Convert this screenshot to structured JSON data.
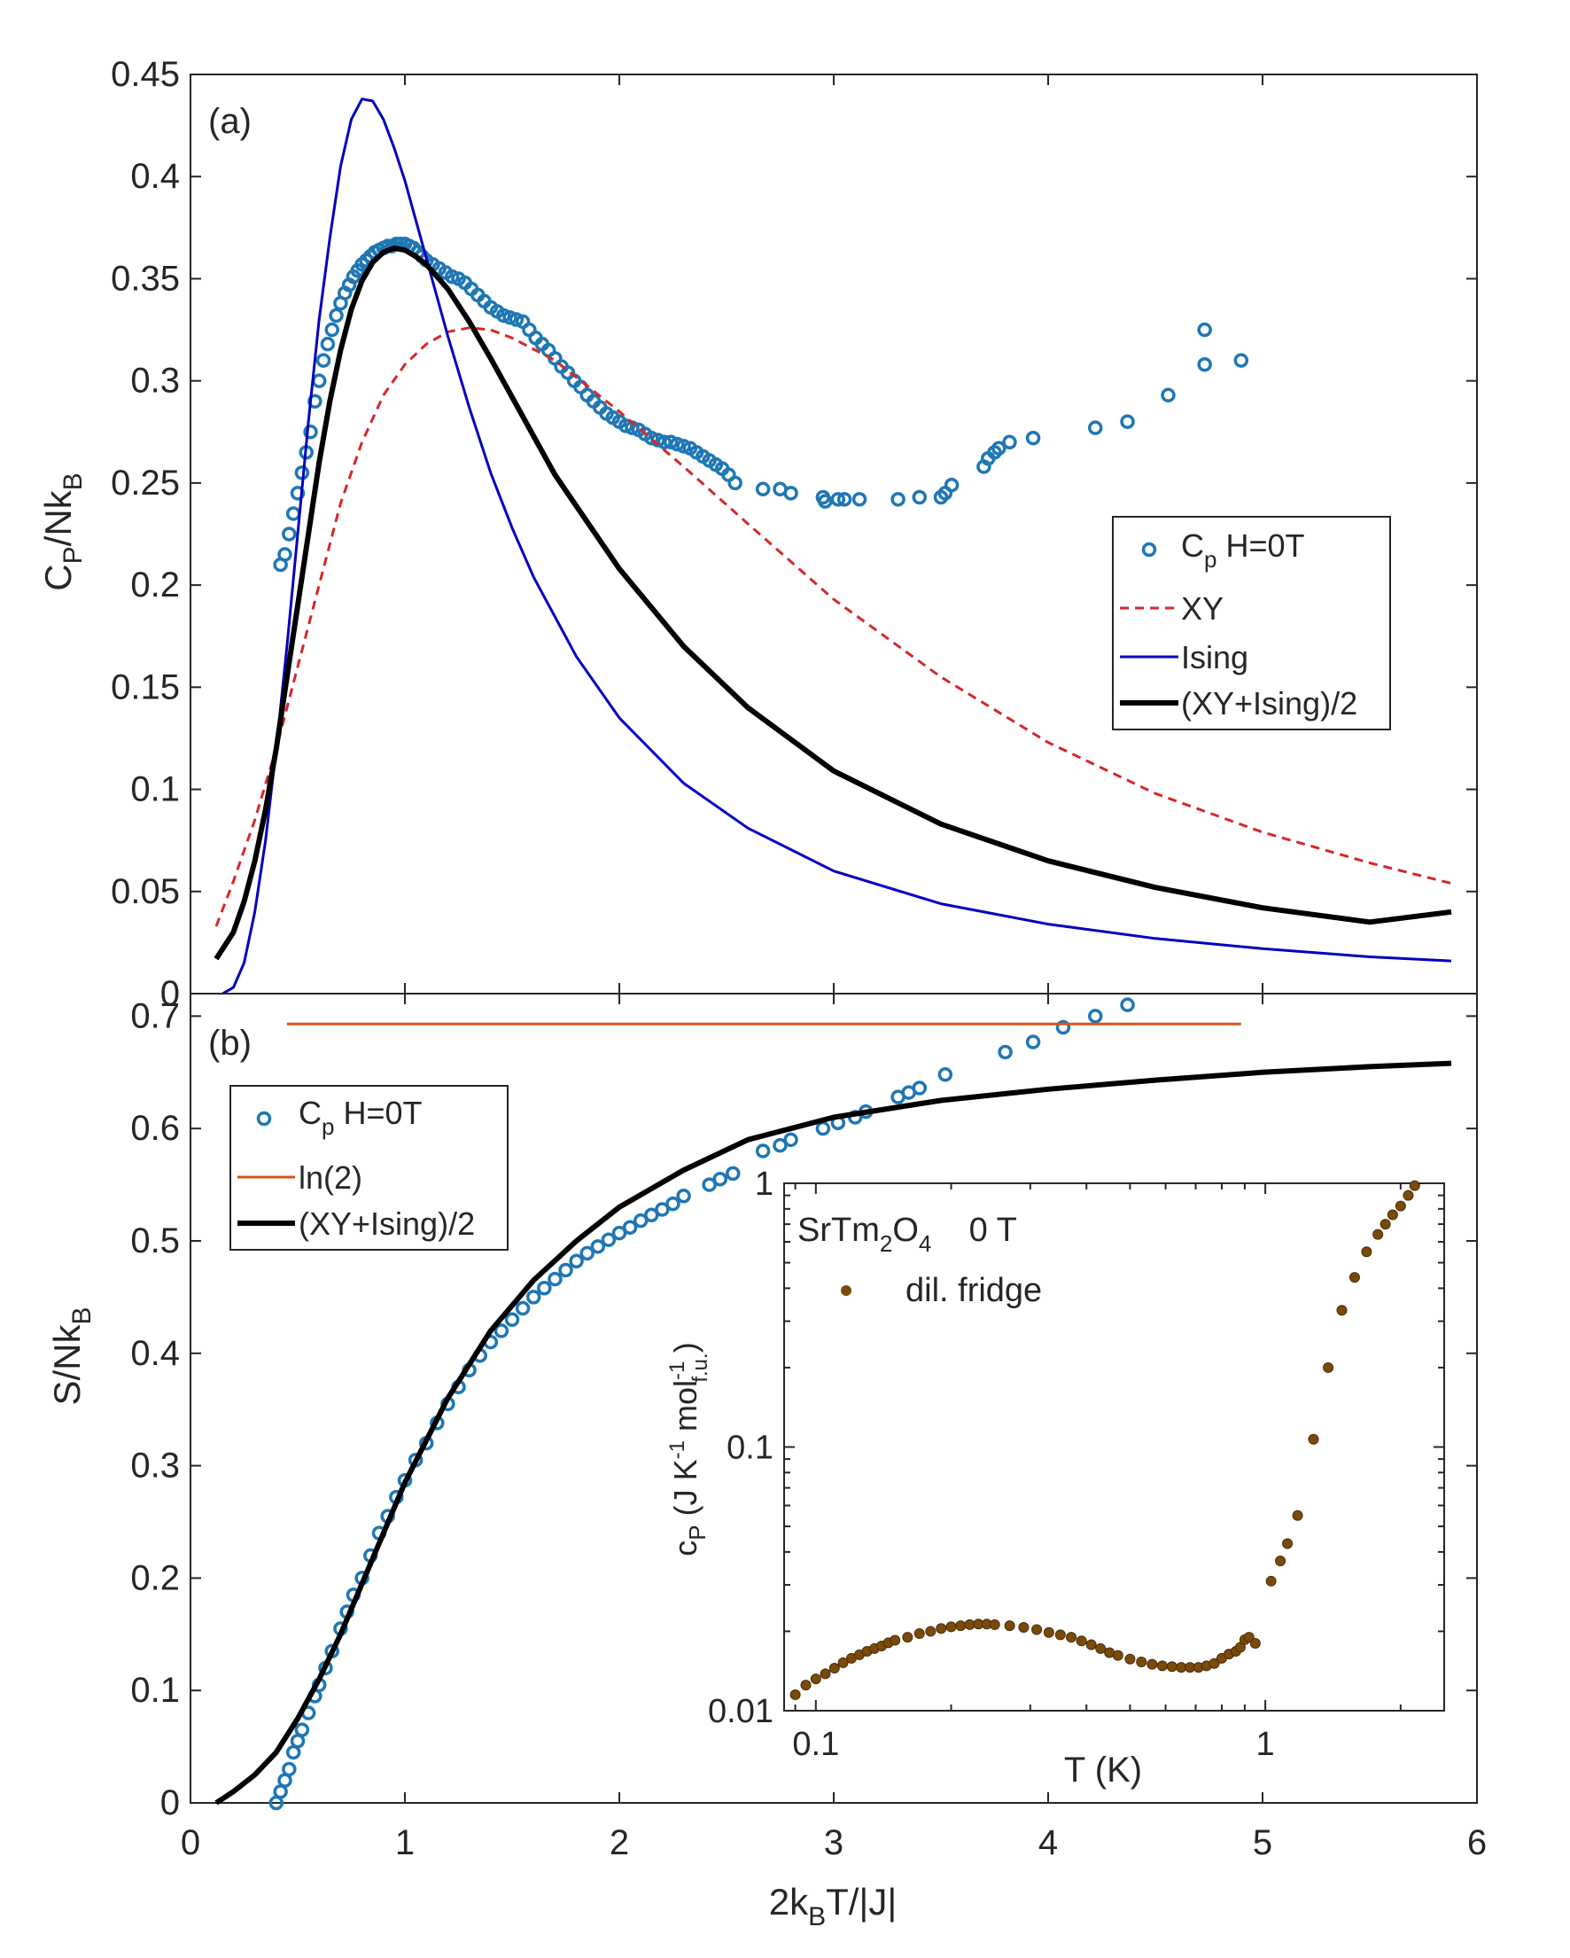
{
  "colors": {
    "data_blue": "#1f77b4",
    "xy_red": "#d62728",
    "ising_blue": "#0000c0",
    "avg_black": "#000000",
    "ln2_orange": "#d95319",
    "inset_brown": "#7a4a0a",
    "axis": "#262626"
  },
  "chart_data": [
    {
      "type": "line",
      "panel_label": "(a)",
      "xlim": [
        0,
        6
      ],
      "ylim": [
        0,
        0.45
      ],
      "xticks": [
        0,
        1,
        2,
        3,
        4,
        5,
        6
      ],
      "yticks": [
        0,
        0.05,
        0.1,
        0.15,
        0.2,
        0.25,
        0.3,
        0.35,
        0.4,
        0.45
      ],
      "ytick_labels": [
        "0",
        "0.05",
        "0.1",
        "0.15",
        "0.2",
        "0.25",
        "0.3",
        "0.35",
        "0.4",
        "0.45"
      ],
      "ylabel": {
        "main": "C",
        "sub1": "P",
        "mid": "/Nk",
        "sub2": "B"
      },
      "legend": {
        "position": "right-middle",
        "entries": [
          {
            "marker": "circle",
            "label": "C",
            "sub": "p",
            "suffix": " H=0T"
          },
          {
            "marker": "dashed",
            "label": "XY"
          },
          {
            "marker": "thin-line",
            "label": "Ising"
          },
          {
            "marker": "thick-line",
            "label": "(XY+Ising)/2"
          }
        ]
      },
      "series": [
        {
          "name": "Cp H=0T",
          "style": "scatter",
          "x": [
            0.42,
            0.44,
            0.46,
            0.48,
            0.5,
            0.52,
            0.54,
            0.56,
            0.58,
            0.6,
            0.62,
            0.64,
            0.66,
            0.68,
            0.7,
            0.72,
            0.74,
            0.76,
            0.78,
            0.8,
            0.82,
            0.84,
            0.86,
            0.88,
            0.9,
            0.92,
            0.94,
            0.96,
            0.98,
            1.0,
            1.02,
            1.04,
            1.06,
            1.08,
            1.1,
            1.13,
            1.16,
            1.19,
            1.22,
            1.25,
            1.28,
            1.31,
            1.34,
            1.37,
            1.4,
            1.43,
            1.46,
            1.49,
            1.52,
            1.55,
            1.58,
            1.61,
            1.64,
            1.67,
            1.7,
            1.73,
            1.76,
            1.79,
            1.82,
            1.85,
            1.88,
            1.91,
            1.94,
            1.97,
            2.0,
            2.03,
            2.06,
            2.09,
            2.12,
            2.15,
            2.18,
            2.21,
            2.24,
            2.27,
            2.3,
            2.33,
            2.36,
            2.39,
            2.42,
            2.45,
            2.48,
            2.51,
            2.54,
            2.67,
            2.75,
            2.8,
            2.95,
            2.96,
            3.02,
            3.05,
            3.12,
            3.3,
            3.4,
            3.5,
            3.52,
            3.55,
            3.7,
            3.72,
            3.75,
            3.77,
            3.82,
            3.93,
            4.22,
            4.37,
            4.56,
            4.73,
            4.73,
            4.9
          ],
          "y": [
            0.21,
            0.215,
            0.225,
            0.235,
            0.245,
            0.255,
            0.265,
            0.275,
            0.29,
            0.3,
            0.31,
            0.318,
            0.325,
            0.332,
            0.338,
            0.343,
            0.347,
            0.351,
            0.354,
            0.357,
            0.359,
            0.361,
            0.363,
            0.364,
            0.365,
            0.366,
            0.366,
            0.367,
            0.367,
            0.367,
            0.366,
            0.365,
            0.363,
            0.361,
            0.359,
            0.357,
            0.355,
            0.353,
            0.351,
            0.35,
            0.348,
            0.345,
            0.342,
            0.339,
            0.336,
            0.334,
            0.332,
            0.331,
            0.33,
            0.329,
            0.325,
            0.321,
            0.318,
            0.315,
            0.311,
            0.307,
            0.304,
            0.3,
            0.297,
            0.293,
            0.29,
            0.287,
            0.284,
            0.282,
            0.28,
            0.278,
            0.277,
            0.276,
            0.274,
            0.272,
            0.271,
            0.27,
            0.27,
            0.269,
            0.268,
            0.267,
            0.265,
            0.263,
            0.261,
            0.259,
            0.257,
            0.254,
            0.25,
            0.247,
            0.247,
            0.245,
            0.243,
            0.241,
            0.242,
            0.242,
            0.242,
            0.242,
            0.243,
            0.243,
            0.245,
            0.249,
            0.258,
            0.262,
            0.265,
            0.267,
            0.27,
            0.272,
            0.277,
            0.28,
            0.293,
            0.308,
            0.325,
            0.31
          ]
        },
        {
          "name": "XY",
          "style": "dashed",
          "x": [
            0.12,
            0.2,
            0.3,
            0.4,
            0.5,
            0.6,
            0.7,
            0.8,
            0.9,
            1.0,
            1.1,
            1.2,
            1.3,
            1.4,
            1.5,
            1.7,
            2.0,
            2.3,
            2.6,
            3.0,
            3.5,
            4.0,
            4.5,
            5.0,
            5.5,
            5.88
          ],
          "y": [
            0.033,
            0.055,
            0.085,
            0.12,
            0.16,
            0.2,
            0.24,
            0.27,
            0.293,
            0.308,
            0.318,
            0.324,
            0.326,
            0.325,
            0.321,
            0.31,
            0.285,
            0.258,
            0.23,
            0.193,
            0.155,
            0.123,
            0.098,
            0.079,
            0.064,
            0.054
          ]
        },
        {
          "name": "Ising",
          "style": "thin",
          "x": [
            0.15,
            0.2,
            0.25,
            0.3,
            0.35,
            0.4,
            0.45,
            0.5,
            0.55,
            0.6,
            0.65,
            0.7,
            0.75,
            0.8,
            0.85,
            0.9,
            0.95,
            1.0,
            1.1,
            1.2,
            1.3,
            1.4,
            1.5,
            1.6,
            1.8,
            2.0,
            2.3,
            2.6,
            3.0,
            3.5,
            4.0,
            4.5,
            5.0,
            5.5,
            5.88
          ],
          "y": [
            0.0,
            0.003,
            0.015,
            0.04,
            0.075,
            0.12,
            0.17,
            0.225,
            0.28,
            0.33,
            0.37,
            0.405,
            0.428,
            0.438,
            0.437,
            0.428,
            0.414,
            0.398,
            0.36,
            0.322,
            0.287,
            0.255,
            0.228,
            0.204,
            0.165,
            0.135,
            0.103,
            0.081,
            0.06,
            0.044,
            0.034,
            0.027,
            0.022,
            0.018,
            0.016
          ]
        },
        {
          "name": "(XY+Ising)/2",
          "style": "thick",
          "x": [
            0.12,
            0.2,
            0.25,
            0.3,
            0.35,
            0.4,
            0.45,
            0.5,
            0.55,
            0.6,
            0.65,
            0.7,
            0.75,
            0.8,
            0.85,
            0.9,
            0.95,
            1.0,
            1.05,
            1.1,
            1.2,
            1.3,
            1.4,
            1.5,
            1.7,
            2.0,
            2.3,
            2.6,
            3.0,
            3.5,
            4.0,
            4.5,
            5.0,
            5.5,
            5.88
          ],
          "y": [
            0.017,
            0.03,
            0.045,
            0.065,
            0.09,
            0.12,
            0.155,
            0.19,
            0.225,
            0.26,
            0.29,
            0.315,
            0.335,
            0.349,
            0.358,
            0.363,
            0.365,
            0.364,
            0.361,
            0.357,
            0.345,
            0.329,
            0.311,
            0.292,
            0.254,
            0.208,
            0.17,
            0.14,
            0.109,
            0.083,
            0.065,
            0.052,
            0.042,
            0.035,
            0.04
          ]
        }
      ]
    },
    {
      "type": "line",
      "panel_label": "(b)",
      "xlim": [
        0,
        6
      ],
      "ylim": [
        0,
        0.72
      ],
      "xticks": [
        0,
        1,
        2,
        3,
        4,
        5,
        6
      ],
      "xtick_labels": [
        "0",
        "1",
        "2",
        "3",
        "4",
        "5",
        "6"
      ],
      "yticks": [
        0,
        0.1,
        0.2,
        0.3,
        0.4,
        0.5,
        0.6,
        0.7
      ],
      "ytick_labels": [
        "0",
        "0.1",
        "0.2",
        "0.3",
        "0.4",
        "0.5",
        "0.6",
        "0.7"
      ],
      "ylabel": {
        "main": "S/Nk",
        "sub": "B"
      },
      "xlabel": {
        "pre": "2k",
        "sub": "B",
        "post": "T/|J|"
      },
      "legend": {
        "position": "top-left",
        "entries": [
          {
            "marker": "circle",
            "label": "C",
            "sub": "p",
            "suffix": " H=0T"
          },
          {
            "marker": "orange-line",
            "label": "ln(2)"
          },
          {
            "marker": "thick-line",
            "label": "(XY+Ising)/2"
          }
        ]
      },
      "series": [
        {
          "name": "Cp H=0T",
          "style": "scatter",
          "x": [
            0.4,
            0.42,
            0.44,
            0.46,
            0.48,
            0.5,
            0.52,
            0.55,
            0.58,
            0.6,
            0.63,
            0.66,
            0.7,
            0.73,
            0.76,
            0.8,
            0.84,
            0.88,
            0.92,
            0.96,
            1.0,
            1.05,
            1.1,
            1.15,
            1.2,
            1.25,
            1.3,
            1.35,
            1.4,
            1.45,
            1.5,
            1.55,
            1.6,
            1.65,
            1.7,
            1.75,
            1.8,
            1.85,
            1.9,
            1.95,
            2.0,
            2.05,
            2.1,
            2.15,
            2.2,
            2.25,
            2.3,
            2.42,
            2.47,
            2.53,
            2.67,
            2.75,
            2.8,
            2.95,
            3.02,
            3.1,
            3.15,
            3.3,
            3.35,
            3.4,
            3.52,
            3.8,
            3.93,
            4.07,
            4.22,
            4.37
          ],
          "y": [
            0.0,
            0.01,
            0.02,
            0.03,
            0.045,
            0.055,
            0.065,
            0.08,
            0.095,
            0.105,
            0.12,
            0.135,
            0.155,
            0.17,
            0.185,
            0.2,
            0.22,
            0.24,
            0.255,
            0.272,
            0.287,
            0.305,
            0.32,
            0.338,
            0.355,
            0.37,
            0.385,
            0.398,
            0.41,
            0.42,
            0.43,
            0.44,
            0.45,
            0.458,
            0.466,
            0.474,
            0.482,
            0.489,
            0.495,
            0.501,
            0.507,
            0.512,
            0.518,
            0.523,
            0.528,
            0.533,
            0.54,
            0.55,
            0.555,
            0.56,
            0.58,
            0.585,
            0.59,
            0.6,
            0.605,
            0.61,
            0.615,
            0.628,
            0.632,
            0.636,
            0.648,
            0.668,
            0.677,
            0.69,
            0.7,
            0.71
          ]
        },
        {
          "name": "ln(2)",
          "style": "orange",
          "x": [
            0.45,
            4.9
          ],
          "y": [
            0.693,
            0.693
          ]
        },
        {
          "name": "(XY+Ising)/2",
          "style": "thick",
          "x": [
            0.12,
            0.2,
            0.3,
            0.4,
            0.5,
            0.6,
            0.7,
            0.8,
            0.9,
            1.0,
            1.2,
            1.4,
            1.6,
            1.8,
            2.0,
            2.3,
            2.6,
            3.0,
            3.5,
            4.0,
            4.5,
            5.0,
            5.5,
            5.88
          ],
          "y": [
            0.0,
            0.01,
            0.025,
            0.045,
            0.075,
            0.11,
            0.15,
            0.195,
            0.24,
            0.285,
            0.36,
            0.42,
            0.465,
            0.5,
            0.53,
            0.563,
            0.59,
            0.61,
            0.625,
            0.635,
            0.643,
            0.65,
            0.655,
            0.658
          ]
        }
      ]
    },
    {
      "type": "scatter",
      "panel_label": "inset",
      "scale": "log-log",
      "title": {
        "pre": "SrTm",
        "sub1": "2",
        "mid": "O",
        "sub2": "4",
        "post": "    0 T"
      },
      "xlabel": "T (K)",
      "ylabel": {
        "pre": "c",
        "sub": "P",
        "post": " (J K",
        "sup1": "-1",
        "mid": " mol",
        "sup2": "-1",
        "sub2": "f.u.",
        "end": ")"
      },
      "xlim": [
        0.085,
        2.5
      ],
      "ylim": [
        0.01,
        1
      ],
      "xticks": [
        0.1,
        1
      ],
      "xtick_labels": [
        "0.1",
        "1"
      ],
      "yticks": [
        0.01,
        0.1,
        1
      ],
      "ytick_labels": [
        "0.01",
        "0.1",
        "1"
      ],
      "legend": {
        "position": "top-left",
        "entries": [
          {
            "marker": "dot",
            "label": "dil. fridge"
          }
        ]
      },
      "series": [
        {
          "name": "dil. fridge",
          "x": [
            0.09,
            0.095,
            0.1,
            0.105,
            0.11,
            0.115,
            0.12,
            0.125,
            0.13,
            0.135,
            0.14,
            0.145,
            0.15,
            0.16,
            0.17,
            0.18,
            0.19,
            0.2,
            0.21,
            0.22,
            0.23,
            0.24,
            0.25,
            0.27,
            0.29,
            0.31,
            0.33,
            0.35,
            0.37,
            0.39,
            0.41,
            0.43,
            0.45,
            0.47,
            0.5,
            0.53,
            0.56,
            0.59,
            0.62,
            0.65,
            0.68,
            0.71,
            0.74,
            0.77,
            0.8,
            0.83,
            0.86,
            0.88,
            0.9,
            0.92,
            0.95,
            1.03,
            1.08,
            1.12,
            1.18,
            1.28,
            1.38,
            1.48,
            1.58,
            1.68,
            1.78,
            1.85,
            1.92,
            2.0,
            2.08,
            2.15
          ],
          "y": [
            0.0115,
            0.0125,
            0.0132,
            0.0138,
            0.0145,
            0.0152,
            0.0158,
            0.0163,
            0.0168,
            0.0172,
            0.0176,
            0.0181,
            0.0185,
            0.019,
            0.0196,
            0.02,
            0.0205,
            0.0208,
            0.021,
            0.0212,
            0.0213,
            0.0213,
            0.0212,
            0.021,
            0.0207,
            0.0203,
            0.0198,
            0.0194,
            0.019,
            0.0184,
            0.0178,
            0.0172,
            0.0166,
            0.0162,
            0.0157,
            0.0153,
            0.015,
            0.0148,
            0.0147,
            0.0146,
            0.0146,
            0.0146,
            0.0148,
            0.0151,
            0.0158,
            0.0164,
            0.0168,
            0.0174,
            0.0186,
            0.019,
            0.018,
            0.031,
            0.037,
            0.043,
            0.055,
            0.107,
            0.2,
            0.33,
            0.44,
            0.55,
            0.64,
            0.7,
            0.76,
            0.82,
            0.9,
            0.98
          ]
        }
      ]
    }
  ]
}
